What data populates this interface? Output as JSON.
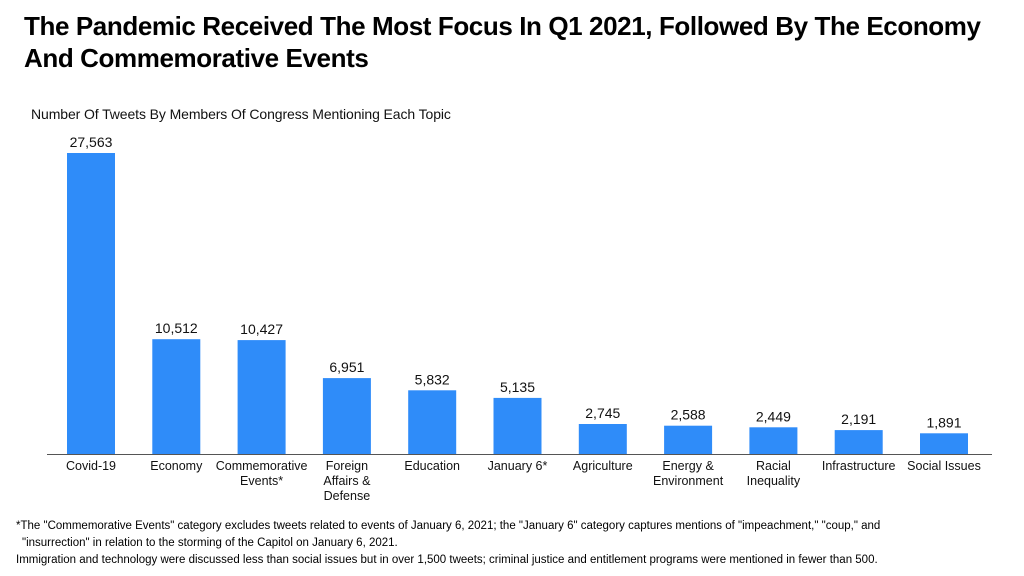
{
  "title": "The Pandemic Received The Most Focus In Q1 2021, Followed By The Economy And Commemorative Events",
  "footnotes": {
    "line1": "*The \"Commemorative Events\" category excludes tweets related to events of January 6, 2021; the \"January 6\" category captures mentions of \"impeachment,\" \"coup,\" and",
    "line2": "\"insurrection\" in relation to the storming of the Capitol on January 6, 2021.",
    "line3": "Immigration and technology were discussed less than social issues but in over 1,500 tweets; criminal justice and entitlement programs were mentioned in fewer than 500."
  },
  "colors": {
    "bar": "#2f8cf9",
    "axis": "#555555",
    "text": "#111111"
  },
  "chart_data": {
    "type": "bar",
    "title": "The Pandemic Received The Most Focus In Q1 2021, Followed By The Economy And Commemorative Events",
    "subtitle": "Number Of Tweets By Members Of Congress Mentioning Each Topic",
    "categories": [
      "Covid-19",
      "Economy",
      "Commemorative Events*",
      "Foreign Affairs & Defense",
      "Education",
      "January 6*",
      "Agriculture",
      "Energy & Environment",
      "Racial Inequality",
      "Infrastructure",
      "Social Issues"
    ],
    "category_lines": [
      [
        "Covid-19"
      ],
      [
        "Economy"
      ],
      [
        "Commemorative",
        "Events*"
      ],
      [
        "Foreign",
        "Affairs &",
        "Defense"
      ],
      [
        "Education"
      ],
      [
        "January 6*"
      ],
      [
        "Agriculture"
      ],
      [
        "Energy &",
        "Environment"
      ],
      [
        "Racial",
        "Inequality"
      ],
      [
        "Infrastructure"
      ],
      [
        "Social Issues"
      ]
    ],
    "values": [
      27563,
      10512,
      10427,
      6951,
      5832,
      5135,
      2745,
      2588,
      2449,
      2191,
      1891
    ],
    "value_labels": [
      "27,563",
      "10,512",
      "10,427",
      "6,951",
      "5,832",
      "5,135",
      "2,745",
      "2,588",
      "2,449",
      "2,191",
      "1,891"
    ],
    "xlabel": "",
    "ylabel": "",
    "ylim": [
      0,
      27563
    ],
    "grid": false,
    "legend": "none"
  }
}
